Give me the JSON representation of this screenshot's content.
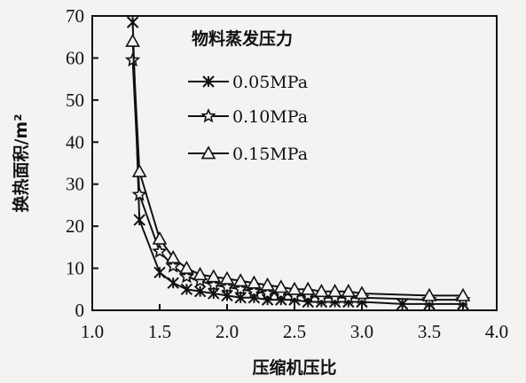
{
  "chart_data": {
    "type": "line",
    "title": "",
    "xlabel": "压缩机压比",
    "ylabel": "换热面积/m²",
    "xlim": [
      1.0,
      4.0
    ],
    "ylim": [
      0,
      70
    ],
    "xticks": [
      "1.0",
      "1.5",
      "2.0",
      "2.5",
      "3.0",
      "3.5",
      "4.0"
    ],
    "yticks": [
      "0",
      "10",
      "20",
      "30",
      "40",
      "50",
      "60",
      "70"
    ],
    "grid": false,
    "legend": {
      "title": "物料蒸发压力",
      "placement": "top-right"
    },
    "series": [
      {
        "name": "0.05MPa",
        "marker": "x-star",
        "points": [
          [
            1.3,
            68.5
          ],
          [
            1.35,
            21.5
          ],
          [
            1.5,
            9.0
          ],
          [
            1.6,
            6.5
          ],
          [
            1.7,
            5.0
          ],
          [
            1.8,
            4.5
          ],
          [
            1.9,
            4.0
          ],
          [
            2.0,
            3.5
          ],
          [
            2.1,
            3.0
          ],
          [
            2.2,
            3.0
          ],
          [
            2.3,
            2.5
          ],
          [
            2.4,
            2.5
          ],
          [
            2.5,
            2.5
          ],
          [
            2.6,
            2.0
          ],
          [
            2.7,
            2.0
          ],
          [
            2.8,
            2.0
          ],
          [
            2.9,
            2.0
          ],
          [
            3.0,
            2.0
          ],
          [
            3.3,
            1.5
          ],
          [
            3.5,
            1.5
          ],
          [
            3.75,
            1.5
          ]
        ]
      },
      {
        "name": "0.10MPa",
        "marker": "star",
        "points": [
          [
            1.3,
            59.5
          ],
          [
            1.35,
            27.5
          ],
          [
            1.5,
            14.0
          ],
          [
            1.6,
            10.5
          ],
          [
            1.7,
            8.0
          ],
          [
            1.8,
            7.0
          ],
          [
            1.9,
            6.0
          ],
          [
            2.0,
            5.5
          ],
          [
            2.1,
            5.0
          ],
          [
            2.2,
            4.5
          ],
          [
            2.3,
            4.0
          ],
          [
            2.4,
            4.0
          ],
          [
            2.5,
            3.5
          ],
          [
            2.6,
            3.5
          ],
          [
            2.7,
            3.0
          ],
          [
            2.8,
            3.0
          ],
          [
            2.9,
            3.0
          ],
          [
            3.0,
            3.0
          ],
          [
            3.5,
            2.5
          ],
          [
            3.75,
            2.5
          ]
        ]
      },
      {
        "name": "0.15MPa",
        "marker": "triangle",
        "points": [
          [
            1.3,
            64.0
          ],
          [
            1.35,
            33.0
          ],
          [
            1.5,
            17.0
          ],
          [
            1.6,
            12.5
          ],
          [
            1.7,
            10.0
          ],
          [
            1.8,
            8.5
          ],
          [
            1.9,
            8.0
          ],
          [
            2.0,
            7.5
          ],
          [
            2.1,
            7.0
          ],
          [
            2.2,
            6.5
          ],
          [
            2.3,
            6.0
          ],
          [
            2.4,
            5.5
          ],
          [
            2.5,
            5.0
          ],
          [
            2.6,
            5.0
          ],
          [
            2.7,
            4.5
          ],
          [
            2.8,
            4.5
          ],
          [
            2.9,
            4.5
          ],
          [
            3.0,
            4.0
          ],
          [
            3.5,
            3.5
          ],
          [
            3.75,
            3.5
          ]
        ]
      }
    ]
  }
}
